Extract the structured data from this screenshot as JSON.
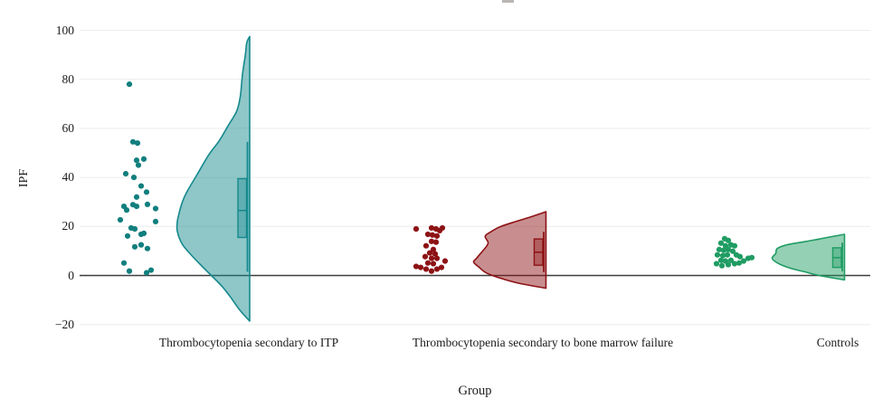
{
  "chart_data": {
    "type": "raincloud (jittered scatter + box plot + half-violin)",
    "title": "",
    "xlabel": "Group",
    "ylabel": "IPF",
    "ylim": [
      -20,
      100
    ],
    "grid": true,
    "zero_line": true,
    "legend": "none",
    "yticks": [
      {
        "value": 100,
        "label": "100"
      },
      {
        "value": 80,
        "label": "80"
      },
      {
        "value": 60,
        "label": "60"
      },
      {
        "value": 40,
        "label": "40"
      },
      {
        "value": 20,
        "label": "20"
      },
      {
        "value": 0,
        "label": "0"
      },
      {
        "value": -20,
        "label": "−20"
      }
    ],
    "groups": [
      {
        "label": "Thrombocytopenia secondary to ITP",
        "stroke": "#15898D",
        "fill": "#15898D",
        "fill_opacity": 0.48,
        "point_color": "#117F7E",
        "box": {
          "q1": 15.5,
          "median": 26.5,
          "q3": 39.5,
          "whisker_low": 1.5,
          "whisker_high": 54.5
        },
        "points": [
          [
            -9,
            78
          ],
          [
            -5,
            54.5
          ],
          [
            0,
            54
          ],
          [
            -1,
            47
          ],
          [
            7,
            47.5
          ],
          [
            1,
            45
          ],
          [
            -13,
            41.5
          ],
          [
            -4,
            40
          ],
          [
            4,
            36.5
          ],
          [
            10,
            34
          ],
          [
            -1,
            32
          ],
          [
            11,
            29
          ],
          [
            -5,
            28.9
          ],
          [
            -1,
            28.2
          ],
          [
            -15,
            28.2
          ],
          [
            -12,
            26.7
          ],
          [
            20,
            27.3
          ],
          [
            -19,
            22.7
          ],
          [
            20,
            22
          ],
          [
            -7,
            19.4
          ],
          [
            -3,
            19
          ],
          [
            -11,
            16.1
          ],
          [
            4,
            16.8
          ],
          [
            7,
            17.2
          ],
          [
            -3,
            11.7
          ],
          [
            4,
            12.5
          ],
          [
            11,
            11
          ],
          [
            -15,
            5.1
          ],
          [
            -9,
            1.8
          ],
          [
            10,
            1.1
          ],
          [
            15,
            2.2
          ]
        ],
        "violin_profile": [
          [
            -18.6,
            0
          ],
          [
            -14,
            0.14
          ],
          [
            -9,
            0.26
          ],
          [
            -4.5,
            0.38
          ],
          [
            0,
            0.53
          ],
          [
            3.5,
            0.65
          ],
          [
            7.8,
            0.79
          ],
          [
            12.7,
            0.93
          ],
          [
            18,
            1.0
          ],
          [
            22,
            1.0
          ],
          [
            26,
            0.97
          ],
          [
            30,
            0.93
          ],
          [
            34,
            0.87
          ],
          [
            41,
            0.73
          ],
          [
            49,
            0.57
          ],
          [
            55,
            0.42
          ],
          [
            61,
            0.3
          ],
          [
            67,
            0.18
          ],
          [
            73,
            0.13
          ],
          [
            82,
            0.1
          ],
          [
            90,
            0.06
          ],
          [
            95,
            0.04
          ],
          [
            97.5,
            0
          ]
        ]
      },
      {
        "label": "Thrombocytopenia secondary to bone marrow failure",
        "stroke": "#8D1215",
        "fill": "#8D1215",
        "fill_opacity": 0.48,
        "point_color": "#8D1215",
        "box": {
          "q1": 4.2,
          "median": 9.5,
          "q3": 14.9,
          "whisker_low": 1.4,
          "whisker_high": 17.8
        },
        "points": [
          [
            -16,
            19
          ],
          [
            1,
            19.4
          ],
          [
            6,
            19
          ],
          [
            10,
            18.3
          ],
          [
            13,
            19.4
          ],
          [
            -3,
            16.8
          ],
          [
            2,
            16.5
          ],
          [
            7,
            16.1
          ],
          [
            1,
            13.9
          ],
          [
            6,
            13.6
          ],
          [
            -5,
            12.1
          ],
          [
            3,
            10.6
          ],
          [
            -1,
            9.2
          ],
          [
            5,
            8.8
          ],
          [
            -6,
            7.7
          ],
          [
            1,
            7
          ],
          [
            7,
            7
          ],
          [
            -3,
            5.1
          ],
          [
            3,
            4.8
          ],
          [
            -16,
            3.7
          ],
          [
            -11,
            3.3
          ],
          [
            -5,
            2.6
          ],
          [
            1,
            1.8
          ],
          [
            7,
            2.6
          ],
          [
            12,
            3.3
          ],
          [
            16,
            5.9
          ]
        ],
        "violin_profile": [
          [
            -5.2,
            0
          ],
          [
            -3,
            0.4
          ],
          [
            -1,
            0.64
          ],
          [
            1,
            0.82
          ],
          [
            3.5,
            0.93
          ],
          [
            5.5,
            1.0
          ],
          [
            7,
            0.96
          ],
          [
            9.8,
            0.88
          ],
          [
            12,
            0.82
          ],
          [
            13.5,
            0.8
          ],
          [
            16,
            0.84
          ],
          [
            17.5,
            0.78
          ],
          [
            19.8,
            0.64
          ],
          [
            22,
            0.42
          ],
          [
            24,
            0.2
          ],
          [
            26,
            0
          ]
        ]
      },
      {
        "label": "Controls",
        "stroke": "#1F9C63",
        "fill": "#1F9C63",
        "fill_opacity": 0.48,
        "point_color": "#1F9C63",
        "box": {
          "q1": 3.3,
          "median": 7.3,
          "q3": 11.3,
          "whisker_low": 1.7,
          "whisker_high": 13.4
        },
        "points": [
          [
            -9,
            15
          ],
          [
            -5,
            14.3
          ],
          [
            -13,
            13.2
          ],
          [
            -8,
            12.1
          ],
          [
            -2,
            12.5
          ],
          [
            2,
            12.1
          ],
          [
            -15,
            10.6
          ],
          [
            -10,
            10.3
          ],
          [
            -5,
            10.6
          ],
          [
            0,
            9.9
          ],
          [
            -17,
            8.4
          ],
          [
            -11,
            8.1
          ],
          [
            -6,
            8.4
          ],
          [
            4,
            8.4
          ],
          [
            8,
            7.7
          ],
          [
            -13,
            6.2
          ],
          [
            -8,
            5.9
          ],
          [
            -2,
            6.2
          ],
          [
            -18,
            4.8
          ],
          [
            -12,
            4
          ],
          [
            -5,
            4.4
          ],
          [
            2,
            4.8
          ],
          [
            7,
            5.1
          ],
          [
            12,
            5.9
          ],
          [
            17,
            7
          ],
          [
            21,
            7.3
          ]
        ],
        "violin_profile": [
          [
            -1.8,
            0
          ],
          [
            0,
            0.35
          ],
          [
            1.5,
            0.55
          ],
          [
            3,
            0.75
          ],
          [
            5,
            0.92
          ],
          [
            7,
            1.0
          ],
          [
            9,
            0.95
          ],
          [
            11,
            0.93
          ],
          [
            12.5,
            0.8
          ],
          [
            13.8,
            0.55
          ],
          [
            15,
            0.33
          ],
          [
            16,
            0.15
          ],
          [
            16.8,
            0
          ]
        ]
      }
    ],
    "style": {
      "gridline_color": "#ececec",
      "zero_line_color": "#3d3d3d",
      "background": "#ffffff"
    }
  }
}
